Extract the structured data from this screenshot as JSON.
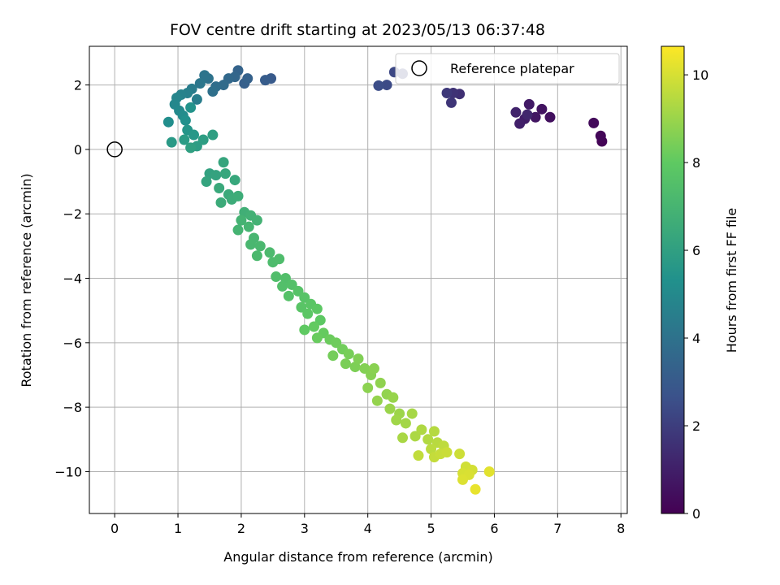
{
  "chart_data": {
    "type": "scatter",
    "title": "FOV centre drift starting at 2023/05/13 06:37:48",
    "xlabel": "Angular distance from reference (arcmin)",
    "ylabel": "Rotation from reference (arcmin)",
    "colorbar_label": "Hours from first FF file",
    "xlim": [
      -0.4,
      8.1
    ],
    "ylim": [
      -11.3,
      3.2
    ],
    "xticks": [
      0,
      1,
      2,
      3,
      4,
      5,
      6,
      7,
      8
    ],
    "yticks": [
      -10,
      -8,
      -6,
      -4,
      -2,
      0,
      2
    ],
    "colorbar_range": [
      0,
      10.65
    ],
    "colorbar_ticks": [
      0,
      2,
      4,
      6,
      8,
      10
    ],
    "colormap": "viridis",
    "grid": true,
    "legend": {
      "label": "Reference platepar",
      "position": "top-right",
      "point": {
        "x": 0,
        "y": 0
      }
    },
    "points": [
      {
        "x": 7.7,
        "y": 0.25,
        "t": 0.1
      },
      {
        "x": 7.68,
        "y": 0.42,
        "t": 0.2
      },
      {
        "x": 7.57,
        "y": 0.82,
        "t": 0.3
      },
      {
        "x": 6.88,
        "y": 1.0,
        "t": 0.5
      },
      {
        "x": 6.75,
        "y": 1.25,
        "t": 0.6
      },
      {
        "x": 6.65,
        "y": 1.0,
        "t": 0.7
      },
      {
        "x": 6.55,
        "y": 1.4,
        "t": 0.8
      },
      {
        "x": 6.48,
        "y": 0.95,
        "t": 0.9
      },
      {
        "x": 6.4,
        "y": 0.8,
        "t": 1.0
      },
      {
        "x": 6.34,
        "y": 1.15,
        "t": 1.1
      },
      {
        "x": 6.52,
        "y": 1.08,
        "t": 1.2
      },
      {
        "x": 5.45,
        "y": 1.72,
        "t": 1.5
      },
      {
        "x": 5.35,
        "y": 1.75,
        "t": 1.6
      },
      {
        "x": 5.32,
        "y": 1.45,
        "t": 1.7
      },
      {
        "x": 5.25,
        "y": 1.75,
        "t": 1.8
      },
      {
        "x": 4.55,
        "y": 2.35,
        "t": 2.2
      },
      {
        "x": 4.42,
        "y": 2.4,
        "t": 2.3
      },
      {
        "x": 4.3,
        "y": 2.0,
        "t": 2.4
      },
      {
        "x": 4.17,
        "y": 1.98,
        "t": 2.5
      },
      {
        "x": 2.47,
        "y": 2.2,
        "t": 3.0
      },
      {
        "x": 2.38,
        "y": 2.15,
        "t": 3.1
      },
      {
        "x": 2.05,
        "y": 2.05,
        "t": 3.2
      },
      {
        "x": 2.1,
        "y": 2.2,
        "t": 3.3
      },
      {
        "x": 1.95,
        "y": 2.45,
        "t": 3.4
      },
      {
        "x": 1.9,
        "y": 2.25,
        "t": 3.5
      },
      {
        "x": 1.8,
        "y": 2.2,
        "t": 3.6
      },
      {
        "x": 1.72,
        "y": 2.0,
        "t": 3.7
      },
      {
        "x": 1.6,
        "y": 1.95,
        "t": 3.8
      },
      {
        "x": 1.55,
        "y": 1.8,
        "t": 3.9
      },
      {
        "x": 1.48,
        "y": 2.2,
        "t": 4.0
      },
      {
        "x": 1.42,
        "y": 2.3,
        "t": 4.1
      },
      {
        "x": 1.35,
        "y": 2.05,
        "t": 4.2
      },
      {
        "x": 1.22,
        "y": 1.88,
        "t": 4.4
      },
      {
        "x": 1.3,
        "y": 1.55,
        "t": 4.5
      },
      {
        "x": 1.15,
        "y": 1.75,
        "t": 4.6
      },
      {
        "x": 1.05,
        "y": 1.7,
        "t": 4.7
      },
      {
        "x": 0.98,
        "y": 1.6,
        "t": 4.8
      },
      {
        "x": 0.95,
        "y": 1.4,
        "t": 4.9
      },
      {
        "x": 1.02,
        "y": 1.2,
        "t": 5.0
      },
      {
        "x": 1.08,
        "y": 1.05,
        "t": 5.1
      },
      {
        "x": 0.85,
        "y": 0.85,
        "t": 5.2
      },
      {
        "x": 1.12,
        "y": 0.9,
        "t": 5.3
      },
      {
        "x": 1.2,
        "y": 1.3,
        "t": 5.4
      },
      {
        "x": 1.15,
        "y": 0.6,
        "t": 5.5
      },
      {
        "x": 1.25,
        "y": 0.45,
        "t": 5.6
      },
      {
        "x": 0.9,
        "y": 0.22,
        "t": 5.7
      },
      {
        "x": 1.1,
        "y": 0.3,
        "t": 5.8
      },
      {
        "x": 1.3,
        "y": 0.1,
        "t": 5.85
      },
      {
        "x": 1.4,
        "y": 0.3,
        "t": 5.9
      },
      {
        "x": 1.55,
        "y": 0.45,
        "t": 5.95
      },
      {
        "x": 1.2,
        "y": 0.05,
        "t": 6.0
      },
      {
        "x": 1.5,
        "y": -0.75,
        "t": 6.1
      },
      {
        "x": 1.6,
        "y": -0.8,
        "t": 6.15
      },
      {
        "x": 1.45,
        "y": -1.0,
        "t": 6.2
      },
      {
        "x": 1.72,
        "y": -0.4,
        "t": 6.25
      },
      {
        "x": 1.75,
        "y": -0.75,
        "t": 6.3
      },
      {
        "x": 1.9,
        "y": -0.95,
        "t": 6.35
      },
      {
        "x": 1.65,
        "y": -1.2,
        "t": 6.4
      },
      {
        "x": 1.8,
        "y": -1.4,
        "t": 6.45
      },
      {
        "x": 1.68,
        "y": -1.65,
        "t": 6.5
      },
      {
        "x": 1.85,
        "y": -1.55,
        "t": 6.55
      },
      {
        "x": 1.95,
        "y": -1.45,
        "t": 6.6
      },
      {
        "x": 2.05,
        "y": -1.95,
        "t": 6.7
      },
      {
        "x": 2.15,
        "y": -2.05,
        "t": 6.8
      },
      {
        "x": 2.25,
        "y": -2.2,
        "t": 6.85
      },
      {
        "x": 2.0,
        "y": -2.2,
        "t": 6.9
      },
      {
        "x": 1.95,
        "y": -2.5,
        "t": 6.95
      },
      {
        "x": 2.12,
        "y": -2.4,
        "t": 7.0
      },
      {
        "x": 2.2,
        "y": -2.75,
        "t": 7.05
      },
      {
        "x": 2.15,
        "y": -2.95,
        "t": 7.1
      },
      {
        "x": 2.3,
        "y": -3.0,
        "t": 7.15
      },
      {
        "x": 2.25,
        "y": -3.3,
        "t": 7.2
      },
      {
        "x": 2.45,
        "y": -3.2,
        "t": 7.25
      },
      {
        "x": 2.5,
        "y": -3.5,
        "t": 7.3
      },
      {
        "x": 2.6,
        "y": -3.4,
        "t": 7.35
      },
      {
        "x": 2.55,
        "y": -3.95,
        "t": 7.4
      },
      {
        "x": 2.7,
        "y": -4.0,
        "t": 7.45
      },
      {
        "x": 2.65,
        "y": -4.25,
        "t": 7.5
      },
      {
        "x": 2.8,
        "y": -4.2,
        "t": 7.55
      },
      {
        "x": 2.75,
        "y": -4.55,
        "t": 7.6
      },
      {
        "x": 2.9,
        "y": -4.4,
        "t": 7.65
      },
      {
        "x": 3.0,
        "y": -4.6,
        "t": 7.7
      },
      {
        "x": 2.95,
        "y": -4.9,
        "t": 7.75
      },
      {
        "x": 3.1,
        "y": -4.8,
        "t": 7.8
      },
      {
        "x": 3.05,
        "y": -5.1,
        "t": 7.85
      },
      {
        "x": 3.2,
        "y": -4.95,
        "t": 7.9
      },
      {
        "x": 3.25,
        "y": -5.3,
        "t": 7.95
      },
      {
        "x": 3.0,
        "y": -5.6,
        "t": 8.0
      },
      {
        "x": 3.15,
        "y": -5.5,
        "t": 8.05
      },
      {
        "x": 3.3,
        "y": -5.7,
        "t": 8.1
      },
      {
        "x": 3.2,
        "y": -5.85,
        "t": 8.15
      },
      {
        "x": 3.4,
        "y": -5.9,
        "t": 8.2
      },
      {
        "x": 3.5,
        "y": -6.0,
        "t": 8.25
      },
      {
        "x": 3.6,
        "y": -6.2,
        "t": 8.3
      },
      {
        "x": 3.45,
        "y": -6.4,
        "t": 8.35
      },
      {
        "x": 3.7,
        "y": -6.35,
        "t": 8.4
      },
      {
        "x": 3.65,
        "y": -6.65,
        "t": 8.45
      },
      {
        "x": 3.8,
        "y": -6.75,
        "t": 8.5
      },
      {
        "x": 3.85,
        "y": -6.5,
        "t": 8.55
      },
      {
        "x": 3.95,
        "y": -6.8,
        "t": 8.6
      },
      {
        "x": 4.05,
        "y": -7.0,
        "t": 8.65
      },
      {
        "x": 4.1,
        "y": -6.8,
        "t": 8.7
      },
      {
        "x": 4.0,
        "y": -7.4,
        "t": 8.75
      },
      {
        "x": 4.2,
        "y": -7.25,
        "t": 8.8
      },
      {
        "x": 4.3,
        "y": -7.6,
        "t": 8.85
      },
      {
        "x": 4.15,
        "y": -7.8,
        "t": 8.9
      },
      {
        "x": 4.4,
        "y": -7.7,
        "t": 8.95
      },
      {
        "x": 4.35,
        "y": -8.05,
        "t": 9.0
      },
      {
        "x": 4.5,
        "y": -8.2,
        "t": 9.05
      },
      {
        "x": 4.45,
        "y": -8.4,
        "t": 9.1
      },
      {
        "x": 4.6,
        "y": -8.5,
        "t": 9.15
      },
      {
        "x": 4.7,
        "y": -8.2,
        "t": 9.2
      },
      {
        "x": 4.55,
        "y": -8.95,
        "t": 9.25
      },
      {
        "x": 4.75,
        "y": -8.9,
        "t": 9.3
      },
      {
        "x": 4.85,
        "y": -8.7,
        "t": 9.35
      },
      {
        "x": 4.95,
        "y": -9.0,
        "t": 9.4
      },
      {
        "x": 5.05,
        "y": -8.75,
        "t": 9.45
      },
      {
        "x": 5.1,
        "y": -9.1,
        "t": 9.5
      },
      {
        "x": 5.0,
        "y": -9.3,
        "t": 9.55
      },
      {
        "x": 5.2,
        "y": -9.2,
        "t": 9.6
      },
      {
        "x": 4.8,
        "y": -9.5,
        "t": 9.65
      },
      {
        "x": 5.05,
        "y": -9.55,
        "t": 9.7
      },
      {
        "x": 5.15,
        "y": -9.45,
        "t": 9.75
      },
      {
        "x": 5.25,
        "y": -9.4,
        "t": 9.8
      },
      {
        "x": 5.45,
        "y": -9.45,
        "t": 9.85
      },
      {
        "x": 5.55,
        "y": -9.85,
        "t": 9.9
      },
      {
        "x": 5.65,
        "y": -9.95,
        "t": 9.95
      },
      {
        "x": 5.5,
        "y": -10.05,
        "t": 10.0
      },
      {
        "x": 5.6,
        "y": -10.1,
        "t": 10.05
      },
      {
        "x": 5.5,
        "y": -10.25,
        "t": 10.1
      },
      {
        "x": 5.92,
        "y": -10.0,
        "t": 10.2
      },
      {
        "x": 5.7,
        "y": -10.55,
        "t": 10.3
      }
    ]
  }
}
